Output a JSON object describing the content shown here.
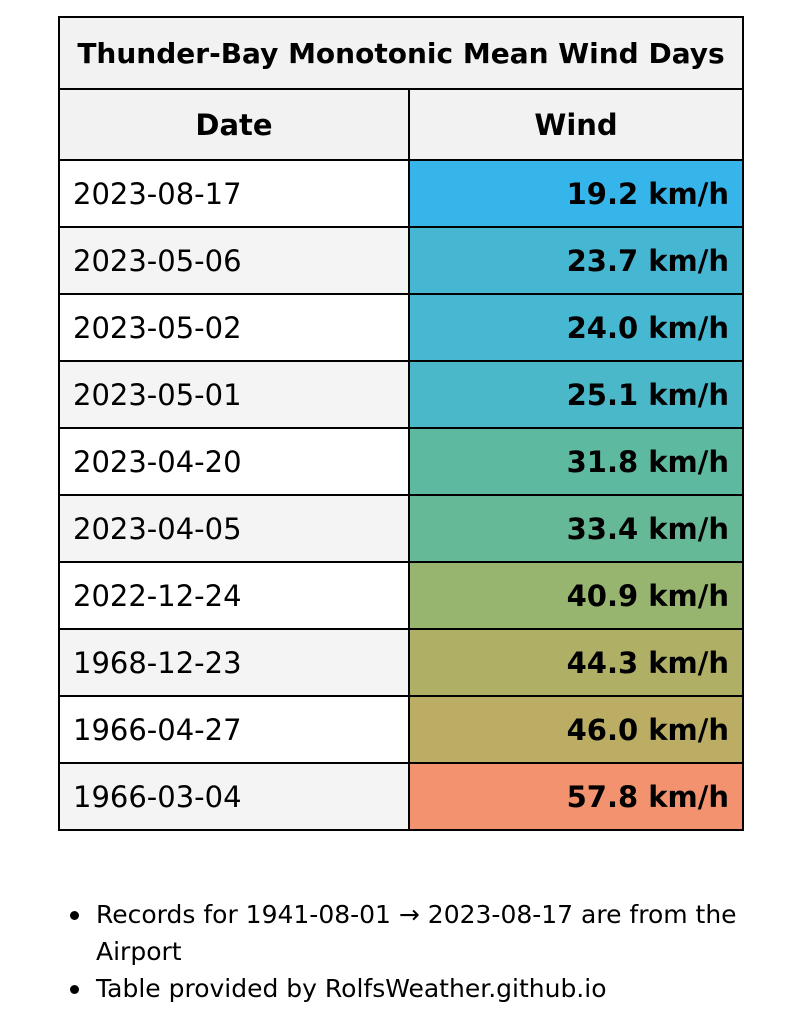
{
  "table": {
    "title": "Thunder-Bay Monotonic Mean Wind Days",
    "headers": [
      "Date",
      "Wind"
    ],
    "rows": [
      {
        "date": "2023-08-17",
        "wind": "19.2 km/h",
        "color": "#35b5ea"
      },
      {
        "date": "2023-05-06",
        "wind": "23.7 km/h",
        "color": "#46b7d3"
      },
      {
        "date": "2023-05-02",
        "wind": "24.0 km/h",
        "color": "#46b8d2"
      },
      {
        "date": "2023-05-01",
        "wind": "25.1 km/h",
        "color": "#4bb8c9"
      },
      {
        "date": "2023-04-20",
        "wind": "31.8 km/h",
        "color": "#5eb9a1"
      },
      {
        "date": "2023-04-05",
        "wind": "33.4 km/h",
        "color": "#66b997"
      },
      {
        "date": "2022-12-24",
        "wind": "40.9 km/h",
        "color": "#98b56f"
      },
      {
        "date": "1968-12-23",
        "wind": "44.3 km/h",
        "color": "#afaf66"
      },
      {
        "date": "1966-04-27",
        "wind": "46.0 km/h",
        "color": "#bbad63"
      },
      {
        "date": "1966-03-04",
        "wind": "57.8 km/h",
        "color": "#f2926f"
      }
    ]
  },
  "notes": [
    "Records for 1941-08-01 → 2023-08-17 are from the Airport",
    "Table provided by RolfsWeather.github.io"
  ]
}
